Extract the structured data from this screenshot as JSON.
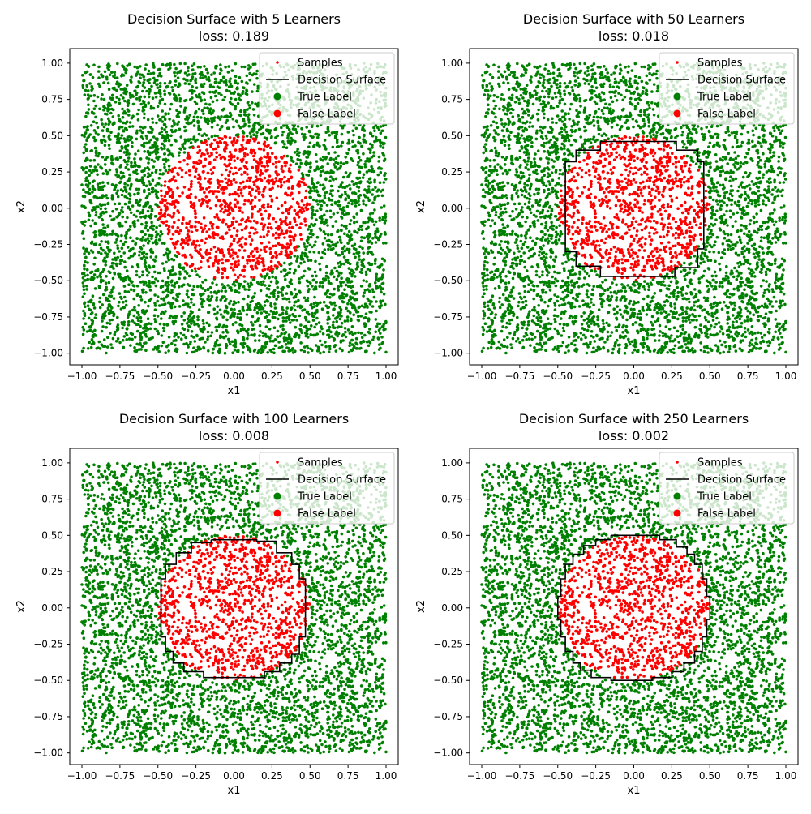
{
  "colors": {
    "true_label": "#008000",
    "false_label": "#ff0000",
    "surface": "#000000",
    "axes": "#000000",
    "background": "#ffffff"
  },
  "chart_data": [
    {
      "type": "scatter",
      "title": "Decision Surface with 5 Learners",
      "subtitle": "loss: 0.189",
      "xlabel": "x1",
      "ylabel": "x2",
      "xlim": [
        -1.08,
        1.08
      ],
      "ylim": [
        -1.08,
        1.1
      ],
      "xticks": [
        -1.0,
        -0.75,
        -0.5,
        -0.25,
        0.0,
        0.25,
        0.5,
        0.75,
        1.0
      ],
      "yticks": [
        -1.0,
        -0.75,
        -0.5,
        -0.25,
        0.0,
        0.25,
        0.5,
        0.75,
        1.0
      ],
      "xtick_labels": [
        "−1.00",
        "−0.75",
        "−0.50",
        "−0.25",
        "0.00",
        "0.25",
        "0.50",
        "0.75",
        "1.00"
      ],
      "ytick_labels": [
        "−1.00",
        "−0.75",
        "−0.50",
        "−0.25",
        "0.00",
        "0.25",
        "0.50",
        "0.75",
        "1.00"
      ],
      "legend": {
        "placement": "top-right",
        "entries": [
          "Samples",
          "Decision Surface",
          "True Label",
          "False Label"
        ]
      },
      "points": {
        "domain": [
          -1,
          1
        ],
        "false_label_region": "circle",
        "false_label_radius": 0.5
      },
      "decision_surface": []
    },
    {
      "type": "scatter",
      "title": "Decision Surface with 50 Learners",
      "subtitle": "loss: 0.018",
      "xlabel": "x1",
      "ylabel": "x2",
      "xlim": [
        -1.08,
        1.08
      ],
      "ylim": [
        -1.08,
        1.1
      ],
      "xticks": [
        -1.0,
        -0.75,
        -0.5,
        -0.25,
        0.0,
        0.25,
        0.5,
        0.75,
        1.0
      ],
      "yticks": [
        -1.0,
        -0.75,
        -0.5,
        -0.25,
        0.0,
        0.25,
        0.5,
        0.75,
        1.0
      ],
      "xtick_labels": [
        "−1.00",
        "−0.75",
        "−0.50",
        "−0.25",
        "0.00",
        "0.25",
        "0.50",
        "0.75",
        "1.00"
      ],
      "ytick_labels": [
        "−1.00",
        "−0.75",
        "−0.50",
        "−0.25",
        "0.00",
        "0.25",
        "0.50",
        "0.75",
        "1.00"
      ],
      "legend": {
        "placement": "top-right",
        "entries": [
          "Samples",
          "Decision Surface",
          "True Label",
          "False Label"
        ]
      },
      "points": {
        "domain": [
          -1,
          1
        ],
        "false_label_region": "circle",
        "false_label_radius": 0.5
      },
      "decision_surface": [
        [
          -0.22,
          0.46
        ],
        [
          0.28,
          0.46
        ],
        [
          0.28,
          0.4
        ],
        [
          0.42,
          0.4
        ],
        [
          0.42,
          0.32
        ],
        [
          0.46,
          0.32
        ],
        [
          0.46,
          -0.28
        ],
        [
          0.42,
          -0.28
        ],
        [
          0.42,
          -0.41
        ],
        [
          0.27,
          -0.41
        ],
        [
          0.27,
          -0.47
        ],
        [
          -0.22,
          -0.47
        ],
        [
          -0.22,
          -0.4
        ],
        [
          -0.38,
          -0.4
        ],
        [
          -0.38,
          -0.3
        ],
        [
          -0.45,
          -0.3
        ],
        [
          -0.45,
          0.32
        ],
        [
          -0.38,
          0.32
        ],
        [
          -0.38,
          0.4
        ],
        [
          -0.22,
          0.4
        ],
        [
          -0.22,
          0.46
        ]
      ]
    },
    {
      "type": "scatter",
      "title": "Decision Surface with 100 Learners",
      "subtitle": "loss: 0.008",
      "xlabel": "x1",
      "ylabel": "x2",
      "xlim": [
        -1.08,
        1.08
      ],
      "ylim": [
        -1.08,
        1.1
      ],
      "xticks": [
        -1.0,
        -0.75,
        -0.5,
        -0.25,
        0.0,
        0.25,
        0.5,
        0.75,
        1.0
      ],
      "yticks": [
        -1.0,
        -0.75,
        -0.5,
        -0.25,
        0.0,
        0.25,
        0.5,
        0.75,
        1.0
      ],
      "xtick_labels": [
        "−1.00",
        "−0.75",
        "−0.50",
        "−0.25",
        "0.00",
        "0.25",
        "0.50",
        "0.75",
        "1.00"
      ],
      "ytick_labels": [
        "−1.00",
        "−0.75",
        "−0.50",
        "−0.25",
        "0.00",
        "0.25",
        "0.50",
        "0.75",
        "1.00"
      ],
      "legend": {
        "placement": "top-right",
        "entries": [
          "Samples",
          "Decision Surface",
          "True Label",
          "False Label"
        ]
      },
      "points": {
        "domain": [
          -1,
          1
        ],
        "false_label_region": "circle",
        "false_label_radius": 0.5
      },
      "decision_surface": [
        [
          -0.15,
          0.47
        ],
        [
          0.15,
          0.47
        ],
        [
          0.15,
          0.46
        ],
        [
          0.28,
          0.46
        ],
        [
          0.28,
          0.38
        ],
        [
          0.38,
          0.38
        ],
        [
          0.38,
          0.3
        ],
        [
          0.43,
          0.3
        ],
        [
          0.43,
          0.2
        ],
        [
          0.47,
          0.2
        ],
        [
          0.47,
          -0.2
        ],
        [
          0.43,
          -0.2
        ],
        [
          0.43,
          -0.32
        ],
        [
          0.38,
          -0.32
        ],
        [
          0.38,
          -0.38
        ],
        [
          0.3,
          -0.38
        ],
        [
          0.3,
          -0.44
        ],
        [
          0.2,
          -0.44
        ],
        [
          0.2,
          -0.48
        ],
        [
          -0.2,
          -0.48
        ],
        [
          -0.2,
          -0.44
        ],
        [
          -0.33,
          -0.44
        ],
        [
          -0.33,
          -0.38
        ],
        [
          -0.4,
          -0.38
        ],
        [
          -0.4,
          -0.3
        ],
        [
          -0.45,
          -0.3
        ],
        [
          -0.45,
          -0.2
        ],
        [
          -0.48,
          -0.2
        ],
        [
          -0.48,
          0.2
        ],
        [
          -0.45,
          0.2
        ],
        [
          -0.45,
          0.3
        ],
        [
          -0.38,
          0.3
        ],
        [
          -0.38,
          0.38
        ],
        [
          -0.28,
          0.38
        ],
        [
          -0.28,
          0.45
        ],
        [
          -0.15,
          0.45
        ],
        [
          -0.15,
          0.47
        ]
      ]
    },
    {
      "type": "scatter",
      "title": "Decision Surface with 250 Learners",
      "subtitle": "loss: 0.002",
      "xlabel": "x1",
      "ylabel": "x2",
      "xlim": [
        -1.08,
        1.08
      ],
      "ylim": [
        -1.08,
        1.1
      ],
      "xticks": [
        -1.0,
        -0.75,
        -0.5,
        -0.25,
        0.0,
        0.25,
        0.5,
        0.75,
        1.0
      ],
      "yticks": [
        -1.0,
        -0.75,
        -0.5,
        -0.25,
        0.0,
        0.25,
        0.5,
        0.75,
        1.0
      ],
      "xtick_labels": [
        "−1.00",
        "−0.75",
        "−0.50",
        "−0.25",
        "0.00",
        "0.25",
        "0.50",
        "0.75",
        "1.00"
      ],
      "ytick_labels": [
        "−1.00",
        "−0.75",
        "−0.50",
        "−0.25",
        "0.00",
        "0.25",
        "0.50",
        "0.75",
        "1.00"
      ],
      "legend": {
        "placement": "top-right",
        "entries": [
          "Samples",
          "Decision Surface",
          "True Label",
          "False Label"
        ]
      },
      "points": {
        "domain": [
          -1,
          1
        ],
        "false_label_region": "circle",
        "false_label_radius": 0.5
      },
      "decision_surface": [
        [
          -0.15,
          0.5
        ],
        [
          0.17,
          0.5
        ],
        [
          0.17,
          0.47
        ],
        [
          0.28,
          0.47
        ],
        [
          0.28,
          0.42
        ],
        [
          0.35,
          0.42
        ],
        [
          0.35,
          0.37
        ],
        [
          0.4,
          0.37
        ],
        [
          0.4,
          0.3
        ],
        [
          0.45,
          0.3
        ],
        [
          0.45,
          0.2
        ],
        [
          0.48,
          0.2
        ],
        [
          0.48,
          0.08
        ],
        [
          0.5,
          0.08
        ],
        [
          0.5,
          -0.08
        ],
        [
          0.48,
          -0.08
        ],
        [
          0.48,
          -0.2
        ],
        [
          0.45,
          -0.2
        ],
        [
          0.45,
          -0.3
        ],
        [
          0.4,
          -0.3
        ],
        [
          0.4,
          -0.38
        ],
        [
          0.33,
          -0.38
        ],
        [
          0.33,
          -0.44
        ],
        [
          0.25,
          -0.44
        ],
        [
          0.25,
          -0.48
        ],
        [
          0.12,
          -0.48
        ],
        [
          0.12,
          -0.5
        ],
        [
          -0.15,
          -0.5
        ],
        [
          -0.15,
          -0.48
        ],
        [
          -0.28,
          -0.48
        ],
        [
          -0.28,
          -0.43
        ],
        [
          -0.35,
          -0.43
        ],
        [
          -0.35,
          -0.38
        ],
        [
          -0.4,
          -0.38
        ],
        [
          -0.4,
          -0.3
        ],
        [
          -0.45,
          -0.3
        ],
        [
          -0.45,
          -0.2
        ],
        [
          -0.48,
          -0.2
        ],
        [
          -0.48,
          -0.08
        ],
        [
          -0.5,
          -0.08
        ],
        [
          -0.5,
          0.08
        ],
        [
          -0.48,
          0.08
        ],
        [
          -0.48,
          0.2
        ],
        [
          -0.45,
          0.2
        ],
        [
          -0.45,
          0.3
        ],
        [
          -0.4,
          0.3
        ],
        [
          -0.4,
          0.37
        ],
        [
          -0.33,
          0.37
        ],
        [
          -0.33,
          0.43
        ],
        [
          -0.25,
          0.43
        ],
        [
          -0.25,
          0.47
        ],
        [
          -0.15,
          0.47
        ],
        [
          -0.15,
          0.5
        ]
      ]
    }
  ]
}
